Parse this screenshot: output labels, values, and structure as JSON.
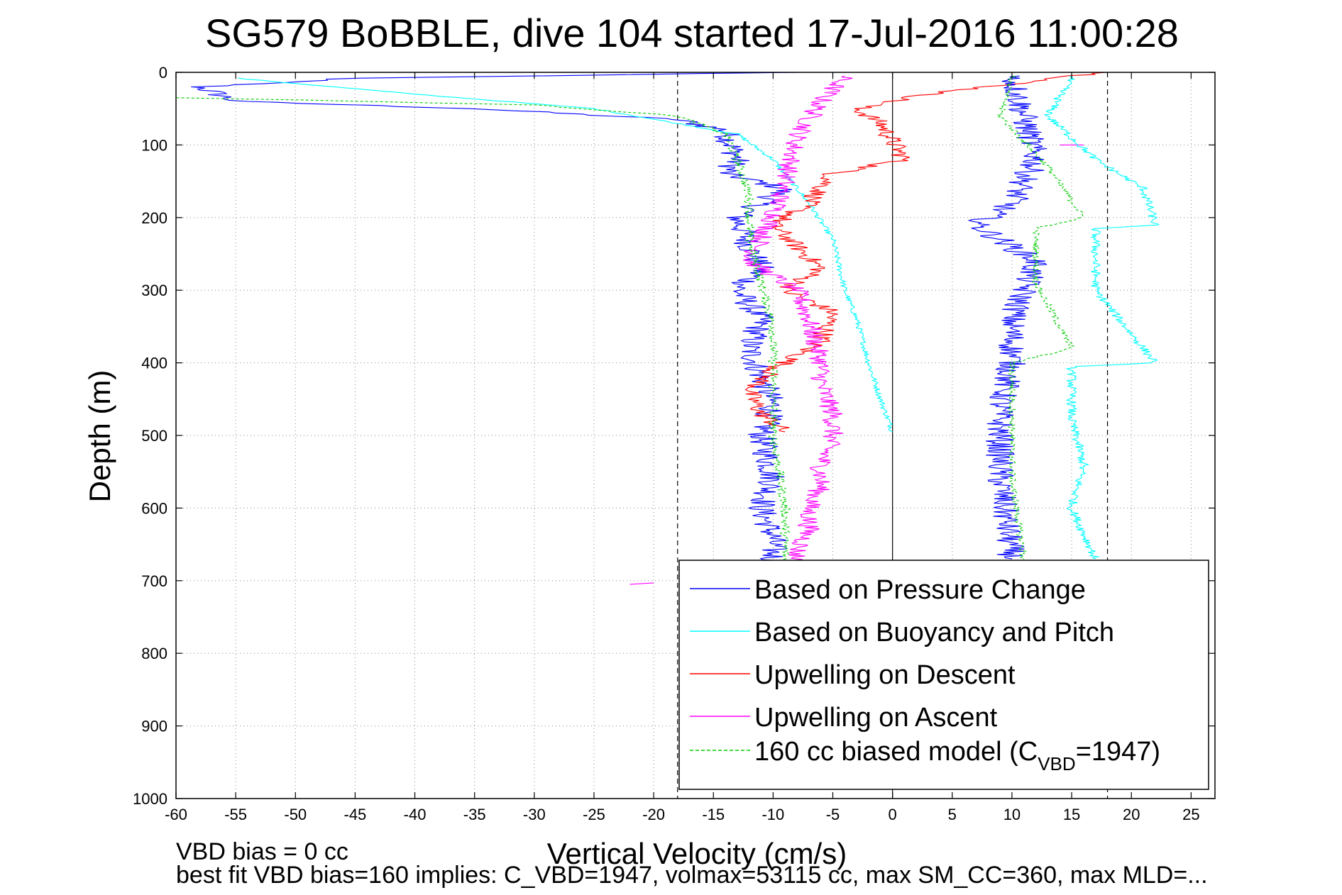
{
  "chart_data": {
    "type": "line",
    "title": "SG579 BoBBLE, dive 104 started 17-Jul-2016 11:00:28",
    "xlabel": "Vertical Velocity (cm/s)",
    "ylabel": "Depth (m)",
    "xlim": [
      -60,
      27
    ],
    "ylim": [
      0,
      1000
    ],
    "y_reversed": true,
    "grid": true,
    "xticks": [
      -60,
      -55,
      -50,
      -45,
      -40,
      -35,
      -30,
      -25,
      -20,
      -15,
      -10,
      -5,
      0,
      5,
      10,
      15,
      20,
      25
    ],
    "yticks": [
      0,
      100,
      200,
      300,
      400,
      500,
      600,
      700,
      800,
      900,
      1000
    ],
    "reference_lines": [
      {
        "orientation": "vertical",
        "x": -18,
        "style": "dashed",
        "color": "#000000"
      },
      {
        "orientation": "vertical",
        "x": 18,
        "style": "dashed",
        "color": "#000000"
      },
      {
        "orientation": "vertical",
        "x": 0,
        "style": "solid",
        "color": "#000000"
      }
    ],
    "legend": {
      "placement": "lower-right",
      "entries": [
        {
          "name": "Based on Pressure Change",
          "color": "#0000ff",
          "style": "solid"
        },
        {
          "name": "Based on Buoyancy and Pitch",
          "color": "#00ffff",
          "style": "solid"
        },
        {
          "name": "Upwelling on Descent",
          "color": "#ff0000",
          "style": "solid"
        },
        {
          "name": "Upwelling on Ascent",
          "color": "#ff00ff",
          "style": "solid"
        },
        {
          "name": "160 cc biased model (C",
          "sub": "VBD",
          "suffix": "=1947)",
          "color": "#00cc00",
          "style": "dashed"
        }
      ]
    },
    "series": [
      {
        "name": "Based on Pressure Change",
        "color": "#0000ff",
        "noise": 1.2,
        "x": [
          -8,
          -45,
          -58,
          -55,
          -35,
          -18,
          -14,
          -13,
          -14,
          -9,
          -13,
          -12,
          -11,
          -13,
          -11,
          -12,
          -11,
          -10,
          -11,
          -10,
          -11,
          -10,
          -10
        ],
        "y": [
          0,
          8,
          20,
          40,
          50,
          65,
          80,
          120,
          140,
          160,
          200,
          240,
          270,
          300,
          340,
          380,
          420,
          460,
          500,
          560,
          600,
          640,
          680
        ]
      },
      {
        "name": "Based on Buoyancy and Pitch",
        "color": "#00ffff",
        "noise": 0.25,
        "x": [
          -55,
          -40,
          -25,
          -13,
          -10,
          -7,
          -5,
          -4,
          -3,
          -2,
          -1,
          0
        ],
        "y": [
          8,
          30,
          50,
          85,
          120,
          180,
          230,
          300,
          340,
          400,
          450,
          495
        ]
      },
      {
        "name": "Upwelling on Descent",
        "color": "#ff0000",
        "noise": 0.9,
        "x": [
          18,
          3,
          -3,
          -1,
          1,
          -5,
          -7,
          -10,
          -8,
          -6,
          -9,
          -5,
          -6,
          -10,
          -12,
          -11,
          -9
        ],
        "y": [
          0,
          30,
          50,
          70,
          120,
          140,
          180,
          210,
          240,
          270,
          300,
          330,
          370,
          410,
          440,
          470,
          495
        ]
      },
      {
        "name": "Upwelling on Ascent",
        "color": "#ff00ff",
        "noise": 0.9,
        "x": [
          -4,
          -6,
          -8,
          -9,
          -10,
          -12,
          -8,
          -7,
          -6,
          -6,
          -5,
          -5,
          -6,
          -6,
          -7,
          -7,
          -8,
          -8
        ],
        "y": [
          5,
          40,
          90,
          150,
          200,
          260,
          300,
          340,
          400,
          430,
          470,
          500,
          540,
          570,
          600,
          630,
          660,
          680
        ]
      },
      {
        "name": "Upwelling on Ascent (spike)",
        "color": "#ff00ff",
        "noise": 0,
        "x": [
          -22,
          -20
        ],
        "y": [
          705,
          703
        ]
      },
      {
        "name": "Upwelling on Ascent (right)",
        "color": "#ff00ff",
        "noise": 0,
        "x": [
          14,
          16
        ],
        "y": [
          100,
          100
        ]
      },
      {
        "name": "160 cc biased model (CVBD=1947)",
        "color": "#00cc00",
        "noise": 0.4,
        "dashed": true,
        "x": [
          -60,
          -50,
          -30,
          -18,
          -14,
          -13,
          -12,
          -12,
          -11,
          -10,
          -10,
          -10,
          -9,
          -9
        ],
        "y": [
          35,
          38,
          45,
          60,
          85,
          120,
          170,
          230,
          290,
          350,
          420,
          500,
          600,
          680
        ]
      },
      {
        "name": "Based on Pressure Change (ascent)",
        "color": "#0000ff",
        "noise": 1.2,
        "x": [
          10,
          11,
          12,
          10,
          7,
          12,
          10,
          10,
          9,
          9,
          10
        ],
        "y": [
          5,
          60,
          120,
          180,
          210,
          260,
          340,
          400,
          460,
          560,
          670
        ]
      },
      {
        "name": "Based on Buoyancy and Pitch (ascent)",
        "color": "#00ffff",
        "noise": 0.4,
        "x": [
          15,
          13,
          17,
          21,
          22,
          17,
          17,
          21,
          22,
          15,
          15,
          16,
          15,
          17
        ],
        "y": [
          5,
          60,
          120,
          160,
          210,
          215,
          300,
          380,
          400,
          405,
          480,
          540,
          600,
          670
        ]
      },
      {
        "name": "160 cc biased model (ascent)",
        "color": "#00cc00",
        "noise": 0.3,
        "dashed": true,
        "x": [
          10,
          9,
          13,
          16,
          12,
          12,
          15,
          10,
          10,
          10,
          11
        ],
        "y": [
          5,
          60,
          130,
          200,
          215,
          290,
          380,
          400,
          460,
          560,
          670
        ]
      }
    ]
  },
  "footnotes": {
    "line1": "VBD bias = 0 cc",
    "line2": "best fit VBD bias=160 implies: C_VBD=1947, volmax=53115 cc, max SM_CC=360, max MLD=..."
  }
}
